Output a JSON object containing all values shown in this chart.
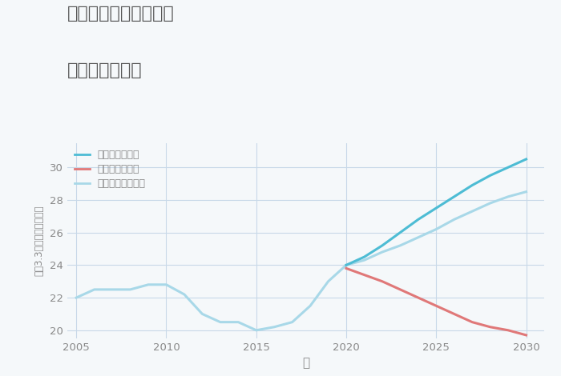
{
  "title_line1": "埼玉県熊谷市善ヶ島の",
  "title_line2": "土地の価格推移",
  "xlabel": "年",
  "ylabel": "坪（3.3㎡）単価（万円）",
  "ylim": [
    19.5,
    31.5
  ],
  "xlim": [
    2004.5,
    2031
  ],
  "yticks": [
    20,
    22,
    24,
    26,
    28,
    30
  ],
  "xticks": [
    2005,
    2010,
    2015,
    2020,
    2025,
    2030
  ],
  "historical_x": [
    2005,
    2006,
    2007,
    2008,
    2009,
    2010,
    2011,
    2012,
    2013,
    2014,
    2015,
    2016,
    2017,
    2018,
    2019,
    2020
  ],
  "historical_y": [
    22.0,
    22.5,
    22.5,
    22.5,
    22.8,
    22.8,
    22.2,
    21.0,
    20.5,
    20.5,
    20.0,
    20.2,
    20.5,
    21.5,
    23.0,
    24.0
  ],
  "good_x": [
    2020,
    2021,
    2022,
    2023,
    2024,
    2025,
    2026,
    2027,
    2028,
    2029,
    2030
  ],
  "good_y": [
    24.0,
    24.5,
    25.2,
    26.0,
    26.8,
    27.5,
    28.2,
    28.9,
    29.5,
    30.0,
    30.5
  ],
  "bad_x": [
    2020,
    2021,
    2022,
    2023,
    2024,
    2025,
    2026,
    2027,
    2028,
    2029,
    2030
  ],
  "bad_y": [
    23.8,
    23.4,
    23.0,
    22.5,
    22.0,
    21.5,
    21.0,
    20.5,
    20.2,
    20.0,
    19.7
  ],
  "normal_x": [
    2020,
    2021,
    2022,
    2023,
    2024,
    2025,
    2026,
    2027,
    2028,
    2029,
    2030
  ],
  "normal_y": [
    24.0,
    24.3,
    24.8,
    25.2,
    25.7,
    26.2,
    26.8,
    27.3,
    27.8,
    28.2,
    28.5
  ],
  "color_good": "#4dbcd4",
  "color_bad": "#e07878",
  "color_normal": "#a8d8e8",
  "color_historical": "#a8d8e8",
  "background_color": "#f5f8fa",
  "grid_color": "#c8d8e8",
  "title_color": "#555555",
  "axis_color": "#888888",
  "legend_good": "グッドシナリオ",
  "legend_bad": "バッドシナリオ",
  "legend_normal": "ノーマルシナリオ"
}
